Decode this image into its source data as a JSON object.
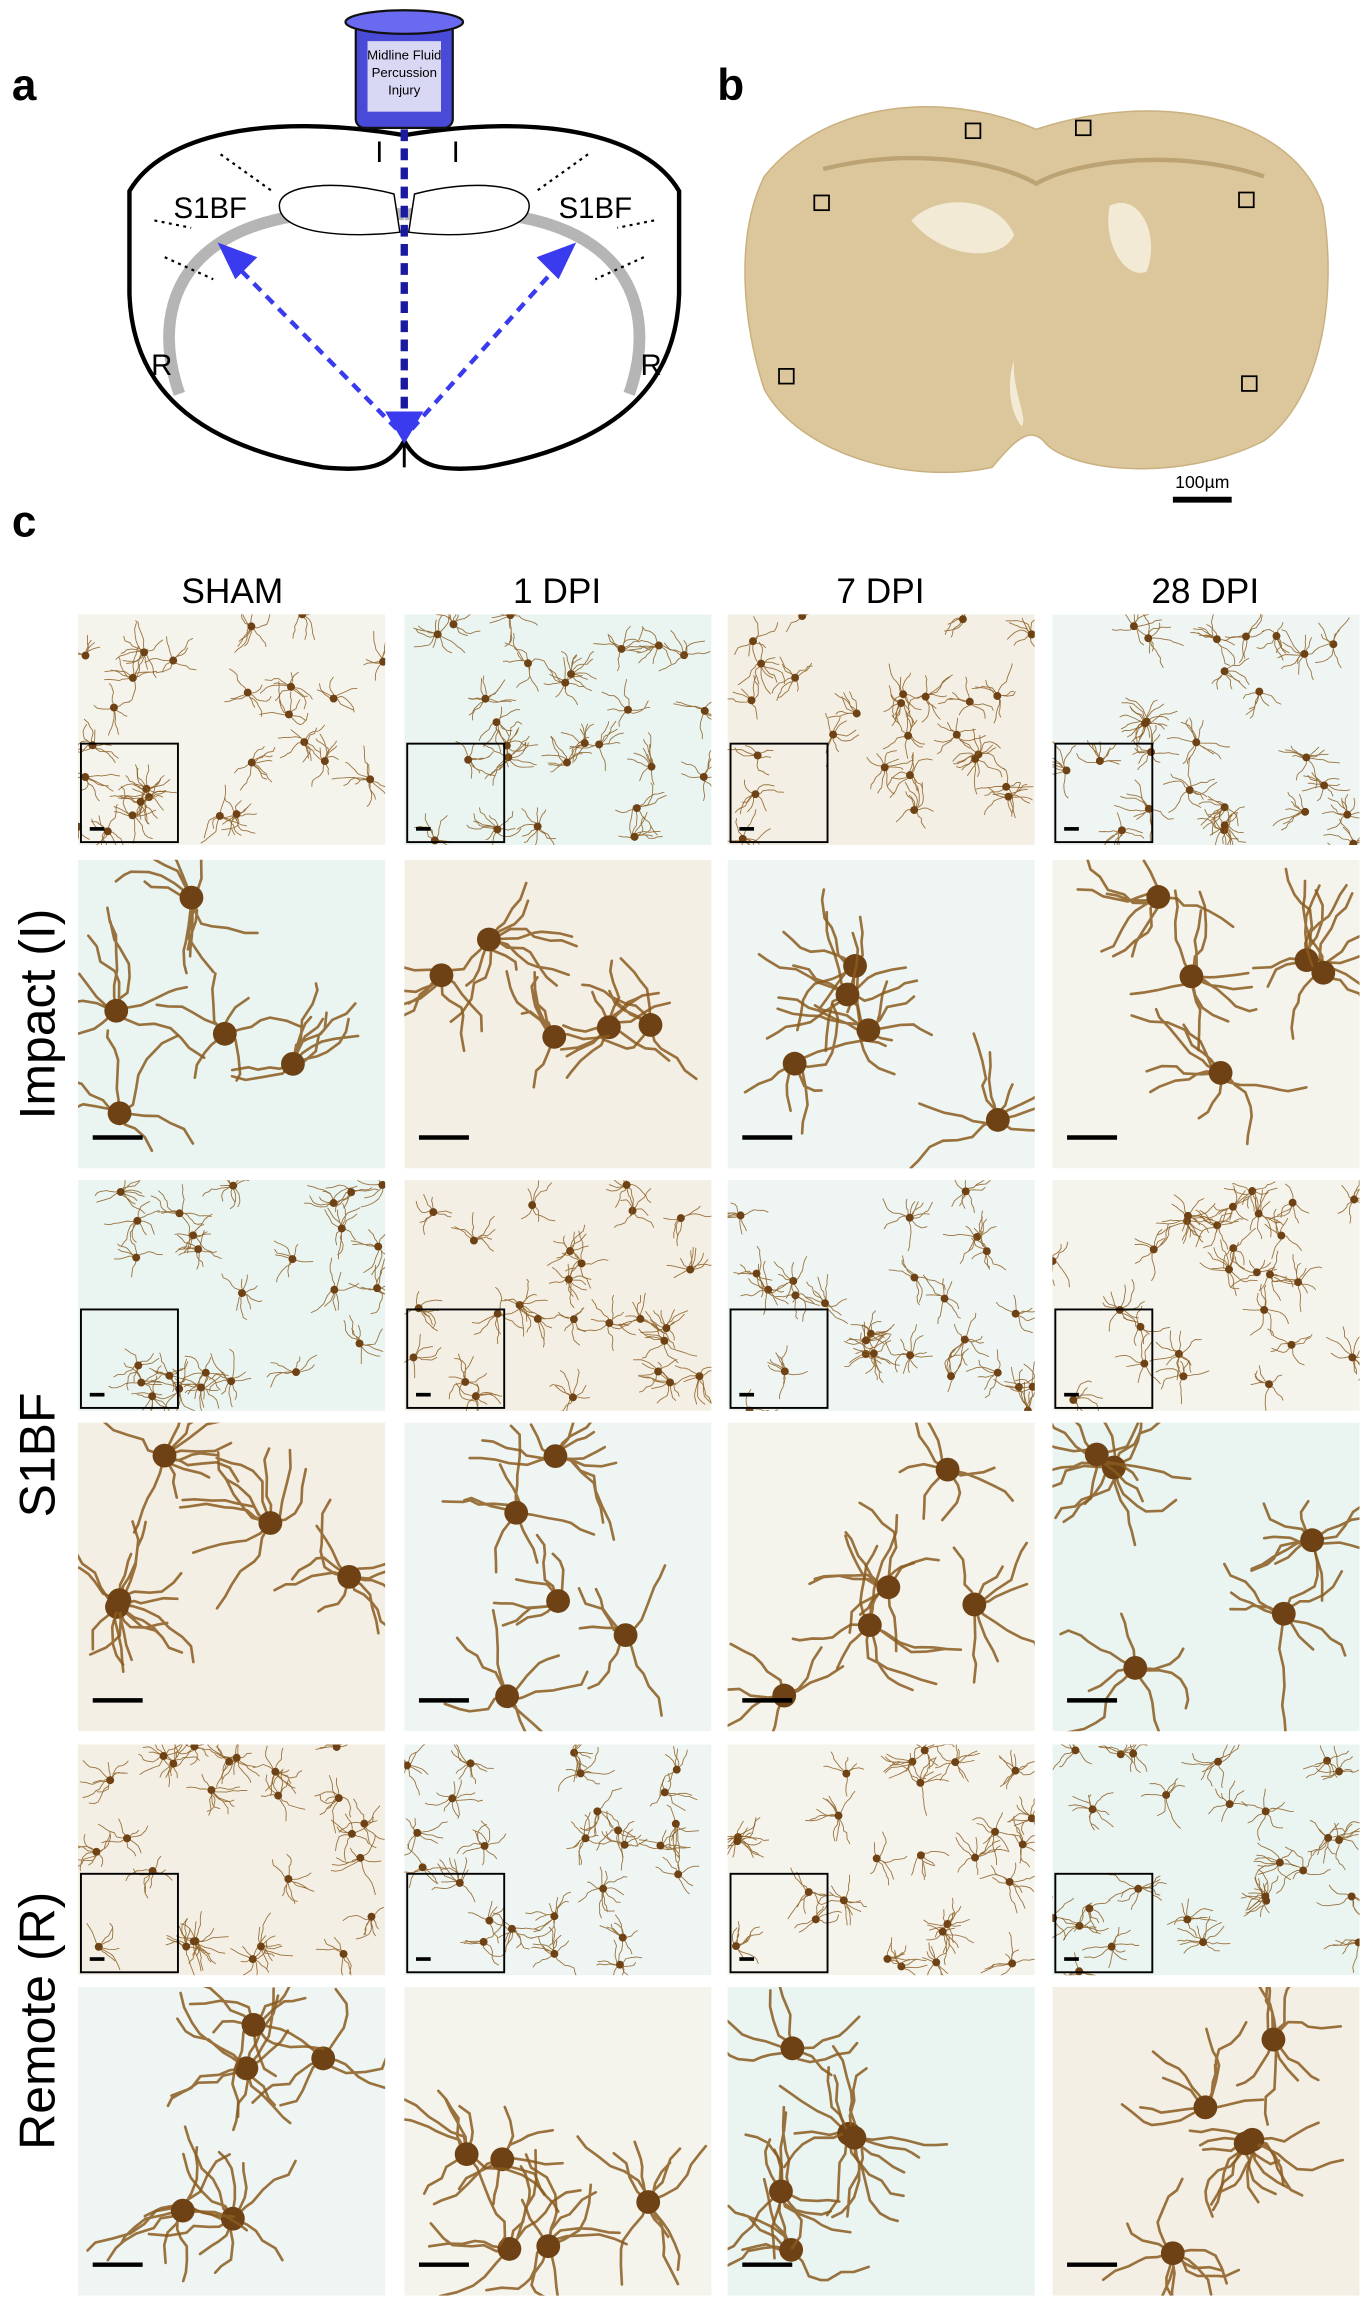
{
  "panel_labels": {
    "a": "a",
    "b": "b",
    "c": "c"
  },
  "diagram": {
    "device_label": [
      "Midline Fluid",
      "Percussion",
      "Injury"
    ],
    "regions": [
      "I",
      "I",
      "S1BF",
      "S1BF",
      "R",
      "R"
    ]
  },
  "section": {
    "scale_bar": "100µm"
  },
  "grid": {
    "columns": [
      "SHAM",
      "1 DPI",
      "7 DPI",
      "28 DPI"
    ],
    "rows": [
      "Impact (I)",
      "S1BF",
      "Remote (R)"
    ]
  }
}
